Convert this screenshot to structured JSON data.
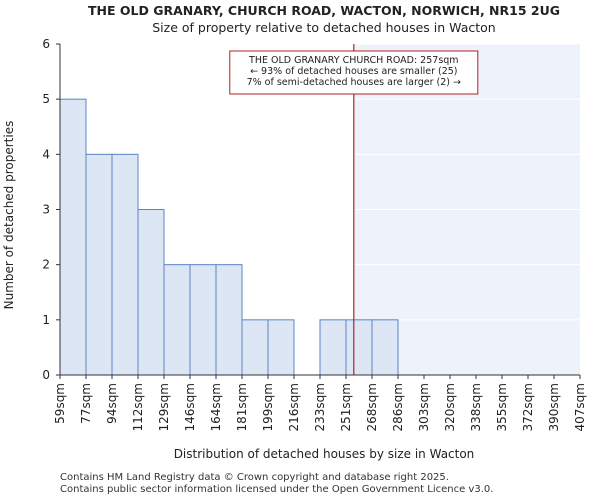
{
  "chart_data": {
    "type": "bar",
    "title": "THE OLD GRANARY, CHURCH ROAD, WACTON, NORWICH, NR15 2UG",
    "subtitle": "Size of property relative to detached houses in Wacton",
    "xlabel": "Distribution of detached houses by size in Wacton",
    "ylabel": "Number of detached properties",
    "ylim": [
      0,
      6
    ],
    "yticks": [
      0,
      1,
      2,
      3,
      4,
      5,
      6
    ],
    "bin_edges": [
      "59sqm",
      "77sqm",
      "94sqm",
      "112sqm",
      "129sqm",
      "146sqm",
      "164sqm",
      "181sqm",
      "199sqm",
      "216sqm",
      "233sqm",
      "251sqm",
      "268sqm",
      "286sqm",
      "303sqm",
      "320sqm",
      "338sqm",
      "355sqm",
      "372sqm",
      "390sqm",
      "407sqm"
    ],
    "values": [
      5,
      4,
      4,
      3,
      2,
      2,
      2,
      1,
      1,
      0,
      1,
      1,
      1,
      0,
      0,
      0,
      0,
      0,
      0,
      0
    ],
    "marker": {
      "bin_position": 11.3,
      "label": "THE OLD GRANARY CHURCH ROAD: 257sqm",
      "line2": "← 93% of detached houses are smaller (25)",
      "line3": "7% of semi-detached houses are larger (2) →"
    },
    "colors": {
      "bar_fill": "#dce6f5",
      "bar_edge": "#5b84c4",
      "marker": "#b22222",
      "shaded": "#eef2fb"
    }
  },
  "footer": {
    "line1": "Contains HM Land Registry data © Crown copyright and database right 2025.",
    "line2": "Contains public sector information licensed under the Open Government Licence v3.0."
  }
}
